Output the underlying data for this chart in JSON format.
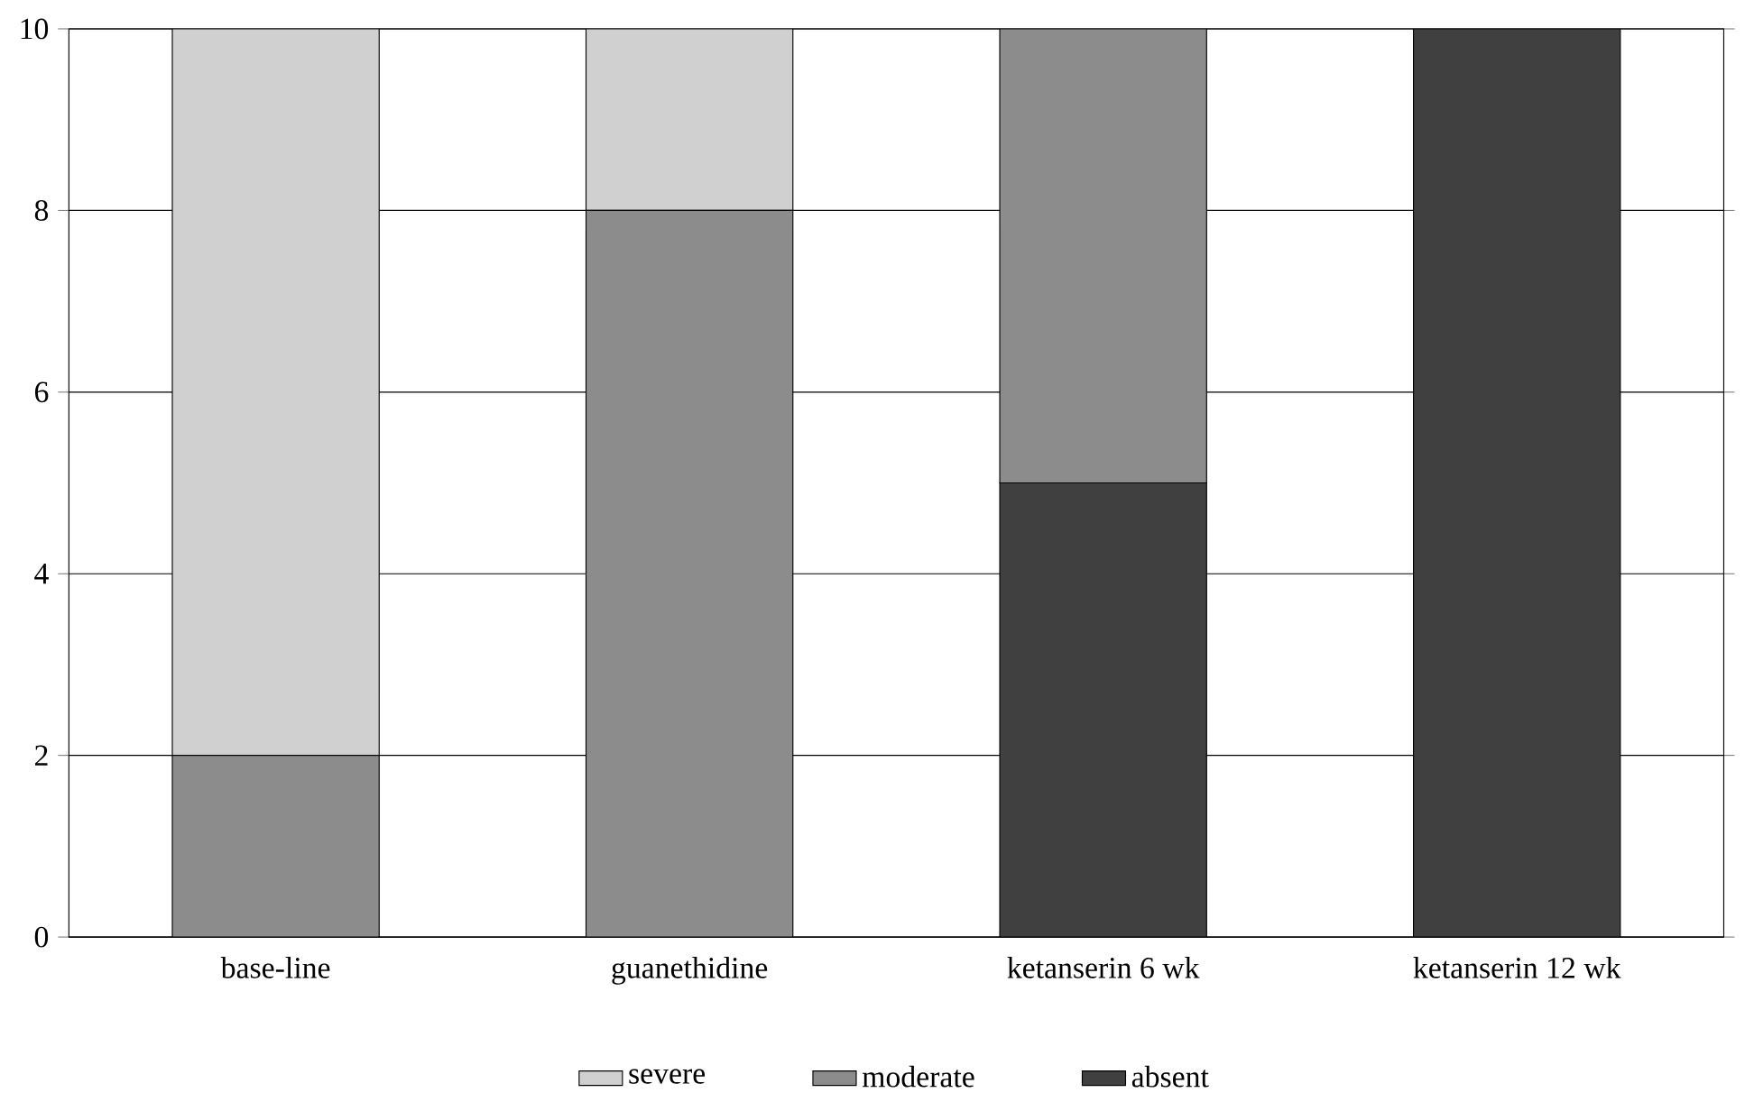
{
  "chart_data": {
    "type": "bar",
    "stacked": true,
    "categories": [
      "base-line",
      "guanethidine",
      "ketanserin 6 wk",
      "ketanserin 12 wk"
    ],
    "series": [
      {
        "name": "absent",
        "color": "#404040",
        "values": [
          0,
          0,
          5,
          10
        ]
      },
      {
        "name": "moderate",
        "color": "#8c8c8c",
        "values": [
          2,
          8,
          5,
          0
        ]
      },
      {
        "name": "severe",
        "color": "#d0d0d0",
        "values": [
          8,
          2,
          0,
          0
        ]
      }
    ],
    "ylim": [
      0,
      10
    ],
    "yticks": [
      0,
      2,
      4,
      6,
      8,
      10
    ],
    "grid": "y",
    "legend": "bottom"
  }
}
